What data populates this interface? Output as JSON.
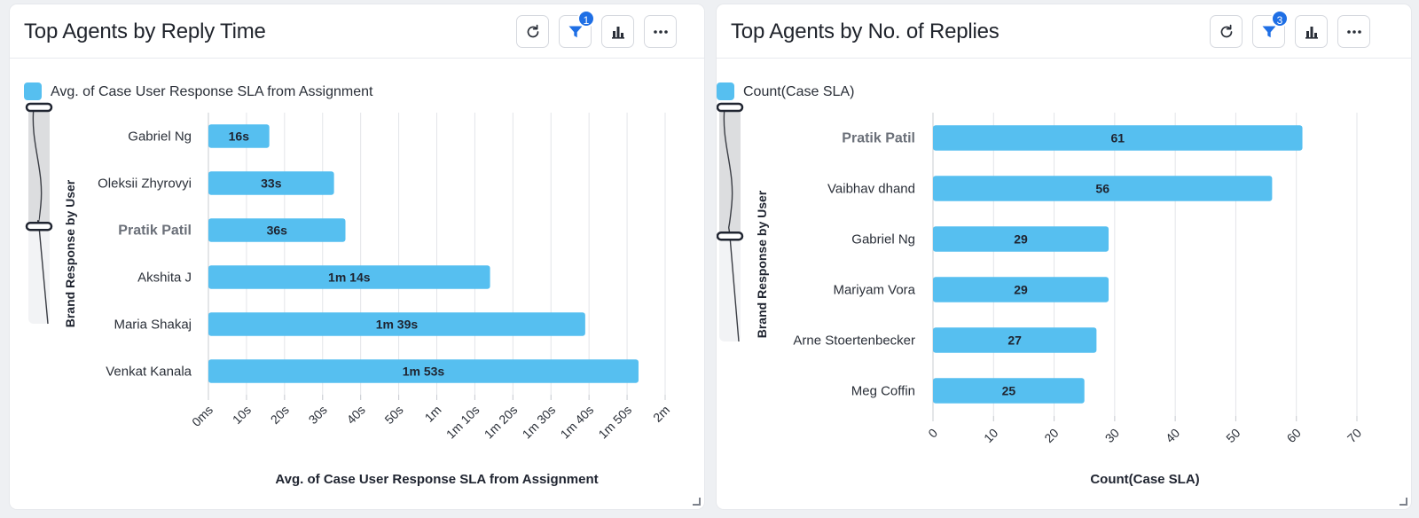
{
  "widgets": [
    {
      "title": "Top Agents by Reply Time",
      "filter_badge": "1",
      "toolbar": {
        "refresh_icon": "refresh-icon",
        "filter_icon": "filter-icon",
        "chart_type_icon": "bar-chart-icon",
        "more_icon": "more-horizontal-icon"
      },
      "chart_data": {
        "type": "bar",
        "orientation": "horizontal",
        "title": "Top Agents by Reply Time",
        "legend": "Avg. of Case User Response SLA from Assignment",
        "ylabel": "Brand Response by User",
        "xlabel": "Avg. of Case User Response SLA from Assignment",
        "categories": [
          "Gabriel Ng",
          "Oleksii Zhyrovyi",
          "Pratik Patil",
          "Akshita J",
          "Maria Shakaj",
          "Venkat Kanala"
        ],
        "highlighted_category": "Pratik Patil",
        "values": [
          16,
          33,
          36,
          74,
          99,
          113
        ],
        "value_unit": "seconds",
        "data_labels": [
          "16s",
          "33s",
          "36s",
          "1m 14s",
          "1m 39s",
          "1m 53s"
        ],
        "xlim": [
          0,
          120
        ],
        "x_ticks": [
          0,
          10,
          20,
          30,
          40,
          50,
          60,
          70,
          80,
          90,
          100,
          110,
          120
        ],
        "x_tick_labels": [
          "0ms",
          "10s",
          "20s",
          "30s",
          "40s",
          "50s",
          "1m",
          "1m 10s",
          "1m 20s",
          "1m 30s",
          "1m 40s",
          "1m 50s",
          "2m"
        ],
        "scrollbar_window": [
          0,
          0.55
        ],
        "grid": true,
        "color": "#56bff0"
      }
    },
    {
      "title": "Top Agents by No. of Replies",
      "filter_badge": "3",
      "toolbar": {
        "refresh_icon": "refresh-icon",
        "filter_icon": "filter-icon",
        "chart_type_icon": "bar-chart-icon",
        "more_icon": "more-horizontal-icon"
      },
      "chart_data": {
        "type": "bar",
        "orientation": "horizontal",
        "title": "Top Agents by No. of Replies",
        "legend": "Count(Case SLA)",
        "ylabel": "Brand Response by User",
        "xlabel": "Count(Case SLA)",
        "categories": [
          "Pratik Patil",
          "Vaibhav dhand",
          "Gabriel Ng",
          "Mariyam Vora",
          "Arne Stoertenbecker",
          "Meg Coffin"
        ],
        "highlighted_category": "Pratik Patil",
        "values": [
          61,
          56,
          29,
          29,
          27,
          25
        ],
        "data_labels": [
          "61",
          "56",
          "29",
          "29",
          "27",
          "25"
        ],
        "xlim": [
          0,
          70
        ],
        "x_ticks": [
          0,
          10,
          20,
          30,
          40,
          50,
          60,
          70
        ],
        "x_tick_labels": [
          "0",
          "10",
          "20",
          "30",
          "40",
          "50",
          "60",
          "70"
        ],
        "scrollbar_window": [
          0,
          0.55
        ],
        "grid": true,
        "color": "#56bff0"
      }
    }
  ]
}
